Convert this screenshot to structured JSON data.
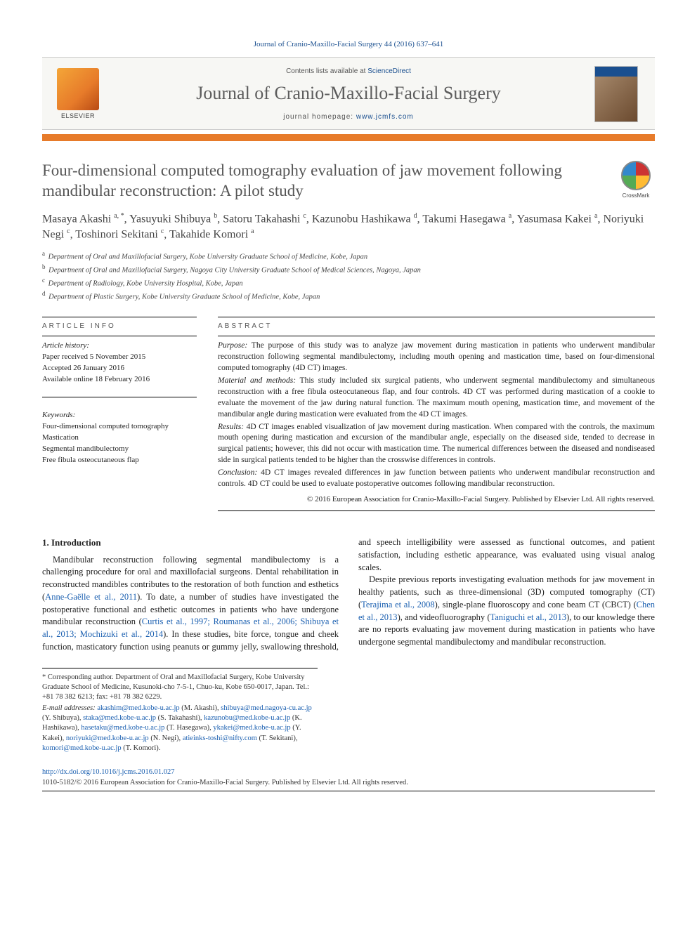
{
  "citation": "Journal of Cranio-Maxillo-Facial Surgery 44 (2016) 637–641",
  "banner": {
    "contents_prefix": "Contents lists available at ",
    "contents_link": "ScienceDirect",
    "journal": "Journal of Cranio-Maxillo-Facial Surgery",
    "homepage_prefix": "journal homepage: ",
    "homepage_url": "www.jcmfs.com",
    "publisher": "ELSEVIER"
  },
  "crossmark_label": "CrossMark",
  "title": "Four-dimensional computed tomography evaluation of jaw movement following mandibular reconstruction: A pilot study",
  "authors_html": "Masaya Akashi <sup>a, *</sup>, Yasuyuki Shibuya <sup>b</sup>, Satoru Takahashi <sup>c</sup>, Kazunobu Hashikawa <sup>d</sup>, Takumi Hasegawa <sup>a</sup>, Yasumasa Kakei <sup>a</sup>, Noriyuki Negi <sup>c</sup>, Toshinori Sekitani <sup>c</sup>, Takahide Komori <sup>a</sup>",
  "affiliations": [
    {
      "sup": "a",
      "text": "Department of Oral and Maxillofacial Surgery, Kobe University Graduate School of Medicine, Kobe, Japan"
    },
    {
      "sup": "b",
      "text": "Department of Oral and Maxillofacial Surgery, Nagoya City University Graduate School of Medical Sciences, Nagoya, Japan"
    },
    {
      "sup": "c",
      "text": "Department of Radiology, Kobe University Hospital, Kobe, Japan"
    },
    {
      "sup": "d",
      "text": "Department of Plastic Surgery, Kobe University Graduate School of Medicine, Kobe, Japan"
    }
  ],
  "info": {
    "label": "ARTICLE INFO",
    "history_label": "Article history:",
    "history": [
      "Paper received 5 November 2015",
      "Accepted 26 January 2016",
      "Available online 18 February 2016"
    ],
    "keywords_label": "Keywords:",
    "keywords": [
      "Four-dimensional computed tomography",
      "Mastication",
      "Segmental mandibulectomy",
      "Free fibula osteocutaneous flap"
    ]
  },
  "abstract": {
    "label": "ABSTRACT",
    "paragraphs": [
      {
        "lead": "Purpose:",
        "text": " The purpose of this study was to analyze jaw movement during mastication in patients who underwent mandibular reconstruction following segmental mandibulectomy, including mouth opening and mastication time, based on four-dimensional computed tomography (4D CT) images."
      },
      {
        "lead": "Material and methods:",
        "text": " This study included six surgical patients, who underwent segmental mandibulectomy and simultaneous reconstruction with a free fibula osteocutaneous flap, and four controls. 4D CT was performed during mastication of a cookie to evaluate the movement of the jaw during natural function. The maximum mouth opening, mastication time, and movement of the mandibular angle during mastication were evaluated from the 4D CT images."
      },
      {
        "lead": "Results:",
        "text": " 4D CT images enabled visualization of jaw movement during mastication. When compared with the controls, the maximum mouth opening during mastication and excursion of the mandibular angle, especially on the diseased side, tended to decrease in surgical patients; however, this did not occur with mastication time. The numerical differences between the diseased and nondiseased side in surgical patients tended to be higher than the crosswise differences in controls."
      },
      {
        "lead": "Conclusion:",
        "text": " 4D CT images revealed differences in jaw function between patients who underwent mandibular reconstruction and controls. 4D CT could be used to evaluate postoperative outcomes following mandibular reconstruction."
      }
    ],
    "copyright": "© 2016 European Association for Cranio-Maxillo-Facial Surgery. Published by Elsevier Ltd. All rights reserved."
  },
  "body": {
    "intro_heading": "1. Introduction",
    "para1_pre": "Mandibular reconstruction following segmental mandibulectomy is a challenging procedure for oral and maxillofacial surgeons. Dental rehabilitation in reconstructed mandibles contributes to the restoration of both function and esthetics (",
    "para1_ref1": "Anne-Gaëlle et al., 2011",
    "para1_mid": "). To date, a number of studies have investigated the postoperative functional and esthetic outcomes in patients who have undergone mandibular reconstruction (",
    "para1_ref2": "Curtis et al., 1997; Roumanas et al., 2006; Shibuya et al., 2013; Mochizuki et al., 2014",
    "para1_post": "). In these studies, bite force, tongue and cheek function, masticatory function using peanuts or gummy jelly, swallowing threshold, and speech intelligibility were assessed as functional outcomes, and patient satisfaction, including esthetic appearance, was evaluated using visual analog scales.",
    "para2_pre": "Despite previous reports investigating evaluation methods for jaw movement in healthy patients, such as three-dimensional (3D) computed tomography (CT) (",
    "para2_ref1": "Terajima et al., 2008",
    "para2_mid1": "), single-plane fluoroscopy and cone beam CT (CBCT) (",
    "para2_ref2": "Chen et al., 2013",
    "para2_mid2": "), and videofluorography (",
    "para2_ref3": "Taniguchi et al., 2013",
    "para2_post": "), to our knowledge there are no reports evaluating jaw movement during mastication in patients who have undergone segmental mandibulectomy and mandibular reconstruction."
  },
  "footnotes": {
    "corr": "* Corresponding author. Department of Oral and Maxillofacial Surgery, Kobe University Graduate School of Medicine, Kusunoki-cho 7-5-1, Chuo-ku, Kobe 650-0017, Japan. Tel.: +81 78 382 6213; fax: +81 78 382 6229.",
    "email_label": "E-mail addresses:",
    "emails": [
      {
        "addr": "akashim@med.kobe-u.ac.jp",
        "who": "(M. Akashi)"
      },
      {
        "addr": "shibuya@med.nagoya-cu.ac.jp",
        "who": "(Y. Shibuya)"
      },
      {
        "addr": "staka@med.kobe-u.ac.jp",
        "who": "(S. Takahashi)"
      },
      {
        "addr": "kazunobu@med.kobe-u.ac.jp",
        "who": "(K. Hashikawa)"
      },
      {
        "addr": "hasetaku@med.kobe-u.ac.jp",
        "who": "(T. Hasegawa)"
      },
      {
        "addr": "ykakei@med.kobe-u.ac.jp",
        "who": "(Y. Kakei)"
      },
      {
        "addr": "noriyuki@med.kobe-u.ac.jp",
        "who": "(N. Negi)"
      },
      {
        "addr": "atieinks-toshi@nifty.com",
        "who": "(T. Sekitani)"
      },
      {
        "addr": "komori@med.kobe-u.ac.jp",
        "who": "(T. Komori)"
      }
    ]
  },
  "doi": "http://dx.doi.org/10.1016/j.jcms.2016.01.027",
  "issn_line": "1010-5182/© 2016 European Association for Cranio-Maxillo-Facial Surgery. Published by Elsevier Ltd. All rights reserved."
}
